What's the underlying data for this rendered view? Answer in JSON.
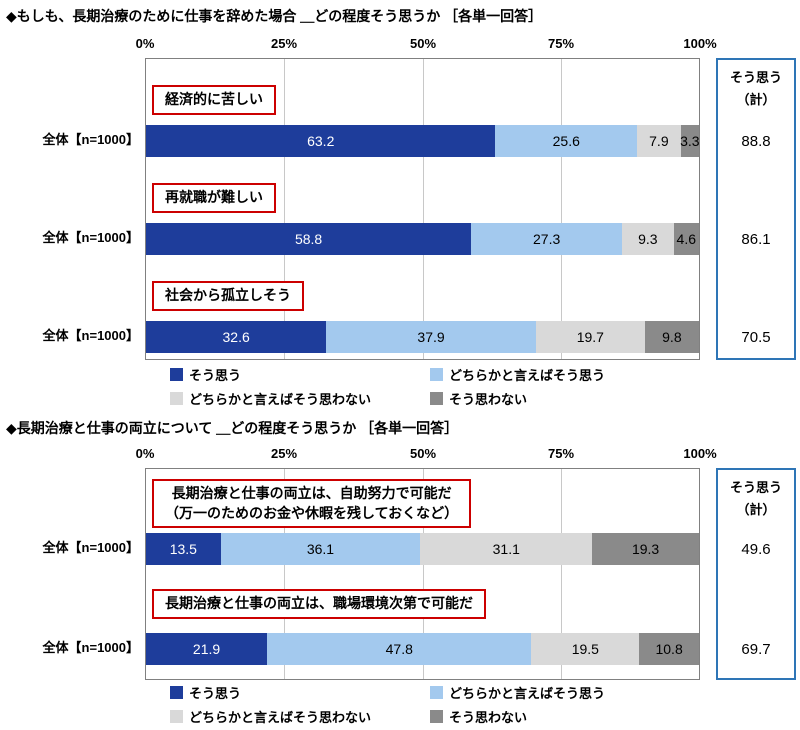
{
  "colors": {
    "seg1": "#1e3d9b",
    "seg2": "#a3c9ee",
    "seg3": "#d9d9d9",
    "seg4": "#8a8a8a",
    "box_border_red": "#cc0000",
    "summary_border_blue": "#2e75b6",
    "plot_border": "#808080",
    "gridline": "#c8c8c8"
  },
  "chart_data": [
    {
      "type": "bar",
      "stacked": true,
      "orientation": "horizontal",
      "title": "◆もしも、長期治療のために仕事を辞めた場合 ＿どの程度そう思うか ［各単一回答］",
      "x_ticks": [
        "0%",
        "25%",
        "50%",
        "75%",
        "100%"
      ],
      "xlim": [
        0,
        100
      ],
      "grid": "vertical lines every 25%",
      "legend": [
        "そう思う",
        "どちらかと言えばそう思う",
        "どちらかと言えばそう思わない",
        "そう思わない"
      ],
      "summary_header": "そう思う\n（計）",
      "rows": [
        {
          "category": "経済的に苦しい",
          "group": "全体【n=1000】",
          "values": [
            63.2,
            25.6,
            7.9,
            3.3
          ],
          "summary": 88.8
        },
        {
          "category": "再就職が難しい",
          "group": "全体【n=1000】",
          "values": [
            58.8,
            27.3,
            9.3,
            4.6
          ],
          "summary": 86.1
        },
        {
          "category": "社会から孤立しそう",
          "group": "全体【n=1000】",
          "values": [
            32.6,
            37.9,
            19.7,
            9.8
          ],
          "summary": 70.5
        }
      ]
    },
    {
      "type": "bar",
      "stacked": true,
      "orientation": "horizontal",
      "title": "◆長期治療と仕事の両立について ＿どの程度そう思うか ［各単一回答］",
      "x_ticks": [
        "0%",
        "25%",
        "50%",
        "75%",
        "100%"
      ],
      "xlim": [
        0,
        100
      ],
      "grid": "vertical lines every 25%",
      "legend": [
        "そう思う",
        "どちらかと言えばそう思う",
        "どちらかと言えばそう思わない",
        "そう思わない"
      ],
      "summary_header": "そう思う\n（計）",
      "rows": [
        {
          "category": "長期治療と仕事の両立は、自助努力で可能だ\n（万一のためのお金や休暇を残しておくなど）",
          "group": "全体【n=1000】",
          "values": [
            13.5,
            36.1,
            31.1,
            19.3
          ],
          "summary": 49.6
        },
        {
          "category": "長期治療と仕事の両立は、職場環境次第で可能だ",
          "group": "全体【n=1000】",
          "values": [
            21.9,
            47.8,
            19.5,
            10.8
          ],
          "summary": 69.7
        }
      ]
    }
  ]
}
